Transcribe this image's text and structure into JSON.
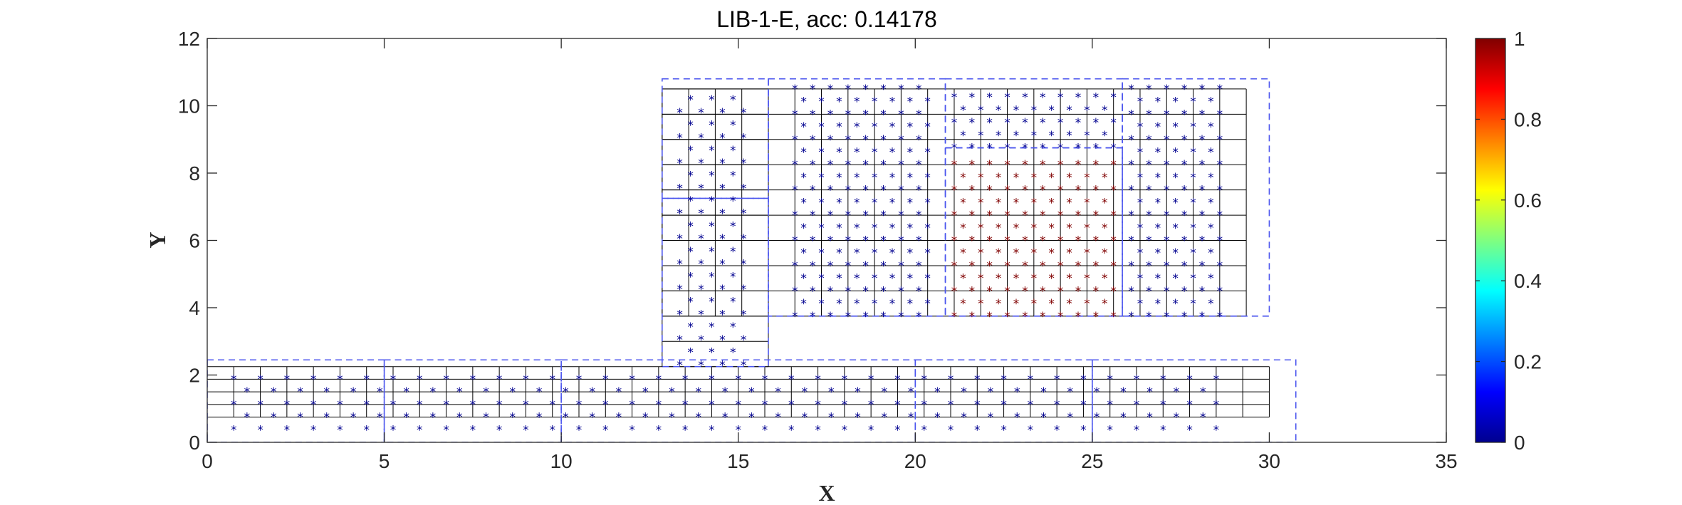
{
  "chart_data": {
    "type": "scatter",
    "title": "LIB-1-E, acc: 0.14178",
    "xlabel": "X",
    "ylabel": "Y",
    "xlim": [
      0,
      35
    ],
    "ylim": [
      0,
      12
    ],
    "x_ticks": [
      "0",
      "5",
      "10",
      "15",
      "20",
      "25",
      "30",
      "35"
    ],
    "y_ticks": [
      "0",
      "2",
      "4",
      "6",
      "8",
      "10",
      "12"
    ],
    "grid": false,
    "marker": "*",
    "colormap": "jet",
    "colorbar": {
      "range": [
        0,
        1
      ],
      "ticks": [
        "0",
        "0.2",
        "0.4",
        "0.6",
        "0.8",
        "1"
      ]
    },
    "solid_grids": [
      {
        "x0": 0,
        "x1": 30,
        "y0": 0.75,
        "y1": 2.25,
        "dx": 0.75,
        "dy": 0.375
      },
      {
        "x0": 12.85,
        "x1": 15.85,
        "y0": 2.25,
        "y1": 10.5,
        "dx": 3.0,
        "dy": 0.75
      },
      {
        "x0": 12.85,
        "x1": 29.35,
        "y0": 3.75,
        "y1": 10.5,
        "dx": 0.75,
        "dy": 0.75
      }
    ],
    "dashed_regions": [
      {
        "x0": 0,
        "x1": 5,
        "y0": 0,
        "y1": 2.45
      },
      {
        "x0": 5,
        "x1": 10,
        "y0": 0,
        "y1": 2.45
      },
      {
        "x0": 10,
        "x1": 20,
        "y0": 0,
        "y1": 2.45
      },
      {
        "x0": 20,
        "x1": 25,
        "y0": 0,
        "y1": 2.45
      },
      {
        "x0": 25,
        "x1": 30.75,
        "y0": 0,
        "y1": 2.45
      },
      {
        "x0": 12.85,
        "x1": 15.85,
        "y0": 2.25,
        "y1": 7.25
      },
      {
        "x0": 12.85,
        "x1": 15.85,
        "y0": 7.25,
        "y1": 10.8
      },
      {
        "x0": 15.85,
        "x1": 20.85,
        "y0": 3.75,
        "y1": 10.8
      },
      {
        "x0": 20.85,
        "x1": 25.85,
        "y0": 3.75,
        "y1": 8.75
      },
      {
        "x0": 20.85,
        "x1": 25.85,
        "y0": 8.75,
        "y1": 10.8
      },
      {
        "x0": 25.85,
        "x1": 30,
        "y0": 3.75,
        "y1": 10.8
      }
    ],
    "point_groups": [
      {
        "x0": 0.75,
        "x1": 28.5,
        "y0": 0.375,
        "y1": 1.875,
        "dx": 0.75,
        "dy": 0.375,
        "stagger": true,
        "value": 0.0
      },
      {
        "x0": 13.35,
        "x1": 15.15,
        "y0": 2.3,
        "y1": 10.5,
        "dx": 0.6,
        "dy": 0.375,
        "stagger": true,
        "value": 0.0
      },
      {
        "x0": 16.6,
        "x1": 20.35,
        "y0": 3.75,
        "y1": 10.5,
        "dx": 0.5,
        "dy": 0.375,
        "stagger": true,
        "value": 0.0
      },
      {
        "x0": 21.1,
        "x1": 25.6,
        "y0": 8.75,
        "y1": 10.5,
        "dx": 0.5,
        "dy": 0.375,
        "stagger": true,
        "value": 0.0
      },
      {
        "x0": 21.1,
        "x1": 25.6,
        "y0": 3.75,
        "y1": 8.6,
        "dx": 0.5,
        "dy": 0.375,
        "stagger": true,
        "value": 1.0
      },
      {
        "x0": 26.1,
        "x1": 28.6,
        "y0": 3.75,
        "y1": 10.5,
        "dx": 0.5,
        "dy": 0.375,
        "stagger": true,
        "value": 0.0
      }
    ]
  }
}
